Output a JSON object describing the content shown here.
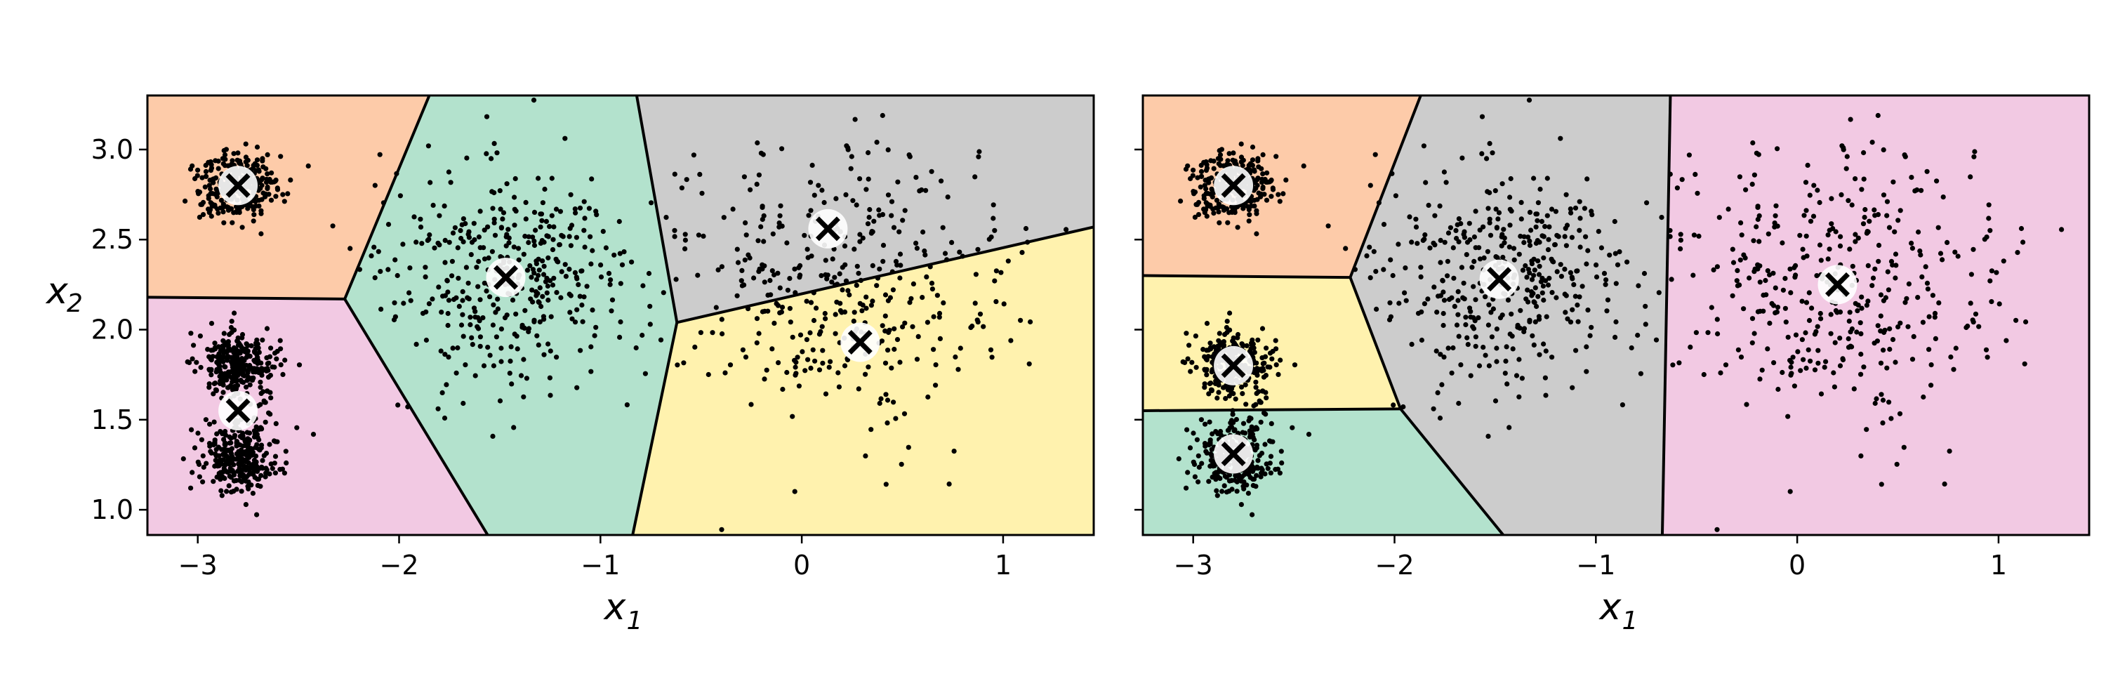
{
  "chart_data": [
    {
      "type": "scatter",
      "title": "",
      "xlabel": "x",
      "xlabel_sub": "1",
      "ylabel": "x",
      "ylabel_sub": "2",
      "xlim": [
        -3.25,
        1.45
      ],
      "ylim": [
        0.86,
        3.3
      ],
      "xticks": [
        -3,
        -2,
        -1,
        0,
        1
      ],
      "xtick_labels": [
        "−3",
        "−2",
        "−1",
        "0",
        "1"
      ],
      "yticks": [
        1.0,
        1.5,
        2.0,
        2.5,
        3.0
      ],
      "ytick_labels": [
        "1.0",
        "1.5",
        "2.0",
        "2.5",
        "3.0"
      ],
      "grid": false,
      "regions": [
        {
          "color": "#fdcba9",
          "polygon": [
            [
              -3.25,
              3.3
            ],
            [
              -1.85,
              3.3
            ],
            [
              -2.27,
              2.17
            ],
            [
              -3.25,
              2.18
            ]
          ]
        },
        {
          "color": "#f2c9e3",
          "polygon": [
            [
              -3.25,
              2.18
            ],
            [
              -2.27,
              2.17
            ],
            [
              -1.56,
              0.86
            ],
            [
              -3.25,
              0.86
            ]
          ]
        },
        {
          "color": "#b3e2cd",
          "polygon": [
            [
              -1.85,
              3.3
            ],
            [
              -0.82,
              3.3
            ],
            [
              -0.62,
              2.04
            ],
            [
              -0.84,
              0.86
            ],
            [
              -1.56,
              0.86
            ],
            [
              -2.27,
              2.17
            ]
          ]
        },
        {
          "color": "#cccccc",
          "polygon": [
            [
              -0.82,
              3.3
            ],
            [
              1.45,
              3.3
            ],
            [
              1.45,
              2.57
            ],
            [
              -0.62,
              2.04
            ]
          ]
        },
        {
          "color": "#fff2ae",
          "polygon": [
            [
              -0.62,
              2.04
            ],
            [
              1.45,
              2.57
            ],
            [
              1.45,
              0.86
            ],
            [
              -0.84,
              0.86
            ]
          ]
        }
      ],
      "boundaries": [
        [
          [
            -1.85,
            3.3
          ],
          [
            -2.27,
            2.17
          ]
        ],
        [
          [
            -3.25,
            2.18
          ],
          [
            -2.27,
            2.17
          ]
        ],
        [
          [
            -2.27,
            2.17
          ],
          [
            -1.56,
            0.86
          ]
        ],
        [
          [
            -0.82,
            3.3
          ],
          [
            -0.62,
            2.04
          ]
        ],
        [
          [
            -0.62,
            2.04
          ],
          [
            1.45,
            2.57
          ]
        ],
        [
          [
            -0.62,
            2.04
          ],
          [
            -0.84,
            0.86
          ]
        ]
      ],
      "clusters": [
        {
          "cx": -2.8,
          "cy": 2.8,
          "sx": 0.1,
          "sy": 0.1,
          "n": 300
        },
        {
          "cx": -2.8,
          "cy": 1.8,
          "sx": 0.1,
          "sy": 0.1,
          "n": 300
        },
        {
          "cx": -2.8,
          "cy": 1.3,
          "sx": 0.1,
          "sy": 0.1,
          "n": 300
        },
        {
          "cx": -1.46,
          "cy": 2.3,
          "sx": 0.3,
          "sy": 0.3,
          "n": 400
        },
        {
          "cx": 0.2,
          "cy": 2.25,
          "sx": 0.42,
          "sy": 0.4,
          "n": 400
        }
      ],
      "centroids": [
        {
          "x": -2.8,
          "y": 2.8
        },
        {
          "x": -2.8,
          "y": 1.55
        },
        {
          "x": -1.47,
          "y": 2.29
        },
        {
          "x": 0.13,
          "y": 2.56
        },
        {
          "x": 0.29,
          "y": 1.93
        }
      ]
    },
    {
      "type": "scatter",
      "title": "",
      "xlabel": "x",
      "xlabel_sub": "1",
      "ylabel": "",
      "ylabel_sub": "",
      "xlim": [
        -3.25,
        1.45
      ],
      "ylim": [
        0.86,
        3.3
      ],
      "xticks": [
        -3,
        -2,
        -1,
        0,
        1
      ],
      "xtick_labels": [
        "−3",
        "−2",
        "−1",
        "0",
        "1"
      ],
      "yticks": [
        1.0,
        1.5,
        2.0,
        2.5,
        3.0
      ],
      "ytick_labels": [],
      "grid": false,
      "regions": [
        {
          "color": "#fdcba9",
          "polygon": [
            [
              -3.25,
              3.3
            ],
            [
              -1.87,
              3.3
            ],
            [
              -2.22,
              2.29
            ],
            [
              -3.25,
              2.3
            ]
          ]
        },
        {
          "color": "#fff2ae",
          "polygon": [
            [
              -3.25,
              2.3
            ],
            [
              -2.22,
              2.29
            ],
            [
              -1.97,
              1.56
            ],
            [
              -3.25,
              1.55
            ]
          ]
        },
        {
          "color": "#b3e2cd",
          "polygon": [
            [
              -3.25,
              1.55
            ],
            [
              -1.97,
              1.56
            ],
            [
              -1.46,
              0.86
            ],
            [
              -3.25,
              0.86
            ]
          ]
        },
        {
          "color": "#cccccc",
          "polygon": [
            [
              -1.87,
              3.3
            ],
            [
              -0.63,
              3.3
            ],
            [
              -0.67,
              0.86
            ],
            [
              -1.46,
              0.86
            ],
            [
              -1.97,
              1.56
            ],
            [
              -2.22,
              2.29
            ]
          ]
        },
        {
          "color": "#f2c9e3",
          "polygon": [
            [
              -0.63,
              3.3
            ],
            [
              1.45,
              3.3
            ],
            [
              1.45,
              0.86
            ],
            [
              -0.67,
              0.86
            ]
          ]
        }
      ],
      "boundaries": [
        [
          [
            -1.87,
            3.3
          ],
          [
            -2.22,
            2.29
          ]
        ],
        [
          [
            -3.25,
            2.3
          ],
          [
            -2.22,
            2.29
          ]
        ],
        [
          [
            -2.22,
            2.29
          ],
          [
            -1.97,
            1.56
          ]
        ],
        [
          [
            -3.25,
            1.55
          ],
          [
            -1.97,
            1.56
          ]
        ],
        [
          [
            -1.97,
            1.56
          ],
          [
            -1.46,
            0.86
          ]
        ],
        [
          [
            -0.63,
            3.3
          ],
          [
            -0.67,
            0.86
          ]
        ]
      ],
      "clusters": [
        {
          "cx": -2.8,
          "cy": 2.8,
          "sx": 0.1,
          "sy": 0.1,
          "n": 300
        },
        {
          "cx": -2.8,
          "cy": 1.8,
          "sx": 0.1,
          "sy": 0.1,
          "n": 300
        },
        {
          "cx": -2.8,
          "cy": 1.3,
          "sx": 0.1,
          "sy": 0.1,
          "n": 300
        },
        {
          "cx": -1.46,
          "cy": 2.3,
          "sx": 0.3,
          "sy": 0.3,
          "n": 400
        },
        {
          "cx": 0.2,
          "cy": 2.25,
          "sx": 0.42,
          "sy": 0.4,
          "n": 400
        }
      ],
      "centroids": [
        {
          "x": -2.8,
          "y": 2.8
        },
        {
          "x": -2.8,
          "y": 1.8
        },
        {
          "x": -2.8,
          "y": 1.31
        },
        {
          "x": -1.48,
          "y": 2.28
        },
        {
          "x": 0.2,
          "y": 2.25
        }
      ]
    }
  ],
  "colors": {
    "boundary": "#000000",
    "points": "#000000",
    "marker_ring": "#ffffff",
    "marker_cross": "#000000"
  }
}
